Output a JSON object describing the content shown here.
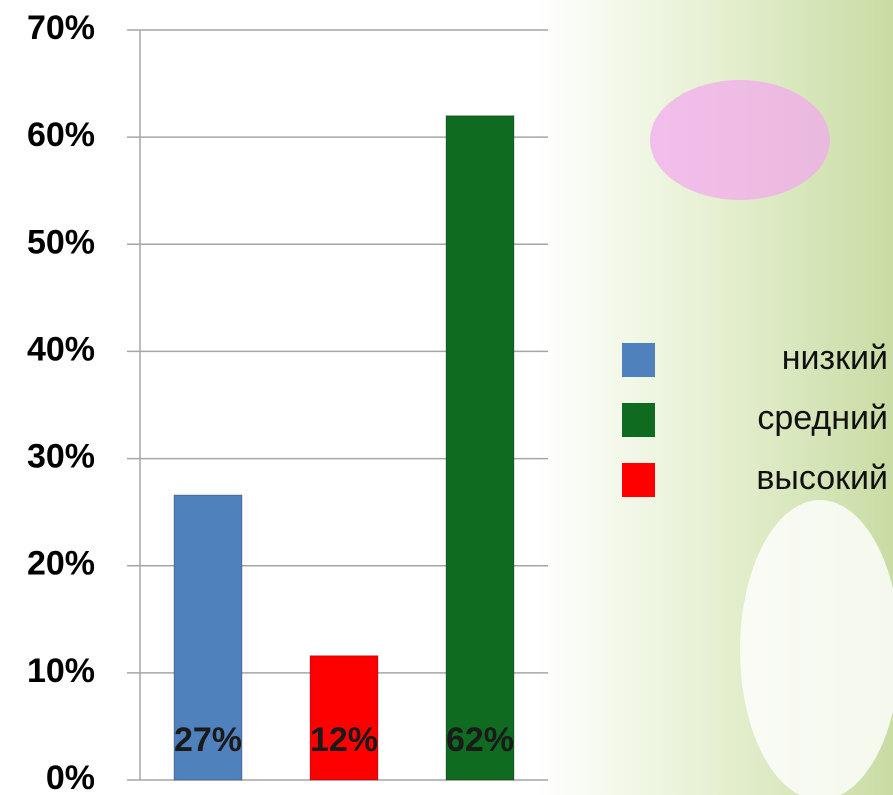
{
  "chart_data": {
    "type": "bar",
    "series": [
      {
        "name": "низкий",
        "color": "#4f81bd",
        "values": [
          26.6
        ],
        "value_labels": [
          "27%"
        ]
      },
      {
        "name": "высокий",
        "color": "#ff0000",
        "values": [
          11.6
        ],
        "value_labels": [
          "12%"
        ]
      },
      {
        "name": "средний",
        "color": "#0e6b1f",
        "values": [
          62
        ],
        "value_labels": [
          "62%"
        ]
      }
    ],
    "legend_order": [
      0,
      2,
      1
    ],
    "ylim": [
      0,
      70
    ],
    "yticks": [
      {
        "value": 0,
        "label": "0%"
      },
      {
        "value": 10,
        "label": "10%"
      },
      {
        "value": 20,
        "label": "20%"
      },
      {
        "value": 30,
        "label": "30%"
      },
      {
        "value": 40,
        "label": "40%"
      },
      {
        "value": 50,
        "label": "50%"
      },
      {
        "value": 60,
        "label": "60%"
      },
      {
        "value": 70,
        "label": "70%"
      }
    ],
    "grid": true,
    "legend": "right"
  }
}
